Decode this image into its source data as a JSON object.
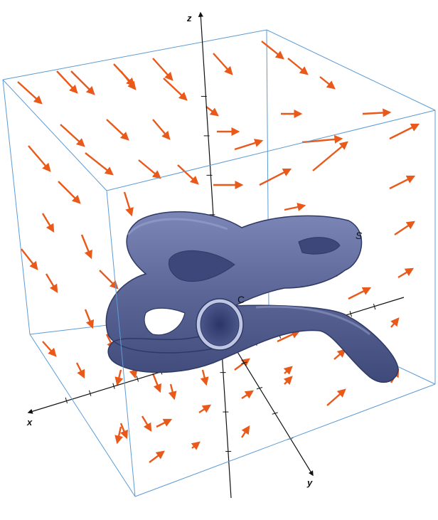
{
  "labels": {
    "z_axis": "z",
    "x_axis": "x",
    "y_axis": "y",
    "surface": "S",
    "boundary_curve": "C"
  },
  "colors": {
    "arrow": "#e8591a",
    "box_edge": "#5b9bd5",
    "surface_fill": "#5a6596",
    "surface_edge": "#2e3a66",
    "axis": "#111111"
  },
  "icons": {
    "vector_field": "arrow-icon",
    "surface": "tube-surface-icon"
  }
}
